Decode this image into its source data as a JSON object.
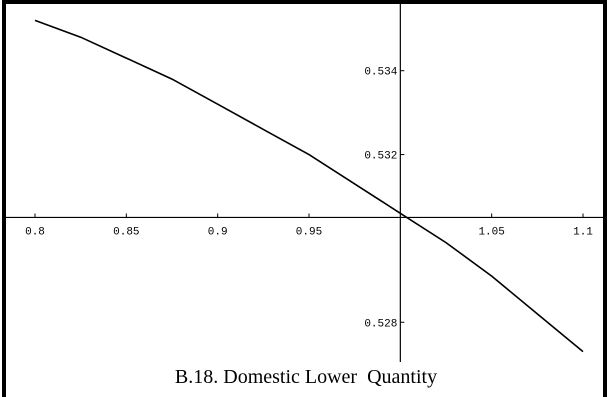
{
  "caption": "B.18. Domestic Lower  Quantity",
  "chart_data": {
    "type": "line",
    "title": "",
    "xlabel": "",
    "ylabel": "",
    "xlim": [
      0.8,
      1.1
    ],
    "ylim": [
      0.5271,
      0.5354
    ],
    "axis_origin": {
      "x": 1.0,
      "y": 0.5305
    },
    "x_ticks": [
      {
        "value": 0.8,
        "label": "0.8"
      },
      {
        "value": 0.85,
        "label": "0.85"
      },
      {
        "value": 0.9,
        "label": "0.9"
      },
      {
        "value": 0.95,
        "label": "0.95"
      },
      {
        "value": 1.05,
        "label": "1.05"
      },
      {
        "value": 1.1,
        "label": "1.1"
      }
    ],
    "y_ticks": [
      {
        "value": 0.534,
        "label": "0.534"
      },
      {
        "value": 0.532,
        "label": "0.532"
      },
      {
        "value": 0.528,
        "label": "0.528"
      }
    ],
    "series": [
      {
        "color": "#000000",
        "x": [
          0.8,
          0.825,
          0.85,
          0.875,
          0.9,
          0.925,
          0.95,
          0.975,
          1.0,
          1.025,
          1.05,
          1.075,
          1.1
        ],
        "y": [
          0.5352,
          0.5348,
          0.5343,
          0.5338,
          0.5332,
          0.5326,
          0.532,
          0.5313,
          0.5306,
          0.5299,
          0.5291,
          0.5282,
          0.5273
        ]
      }
    ],
    "grid": false,
    "legend": "none"
  }
}
